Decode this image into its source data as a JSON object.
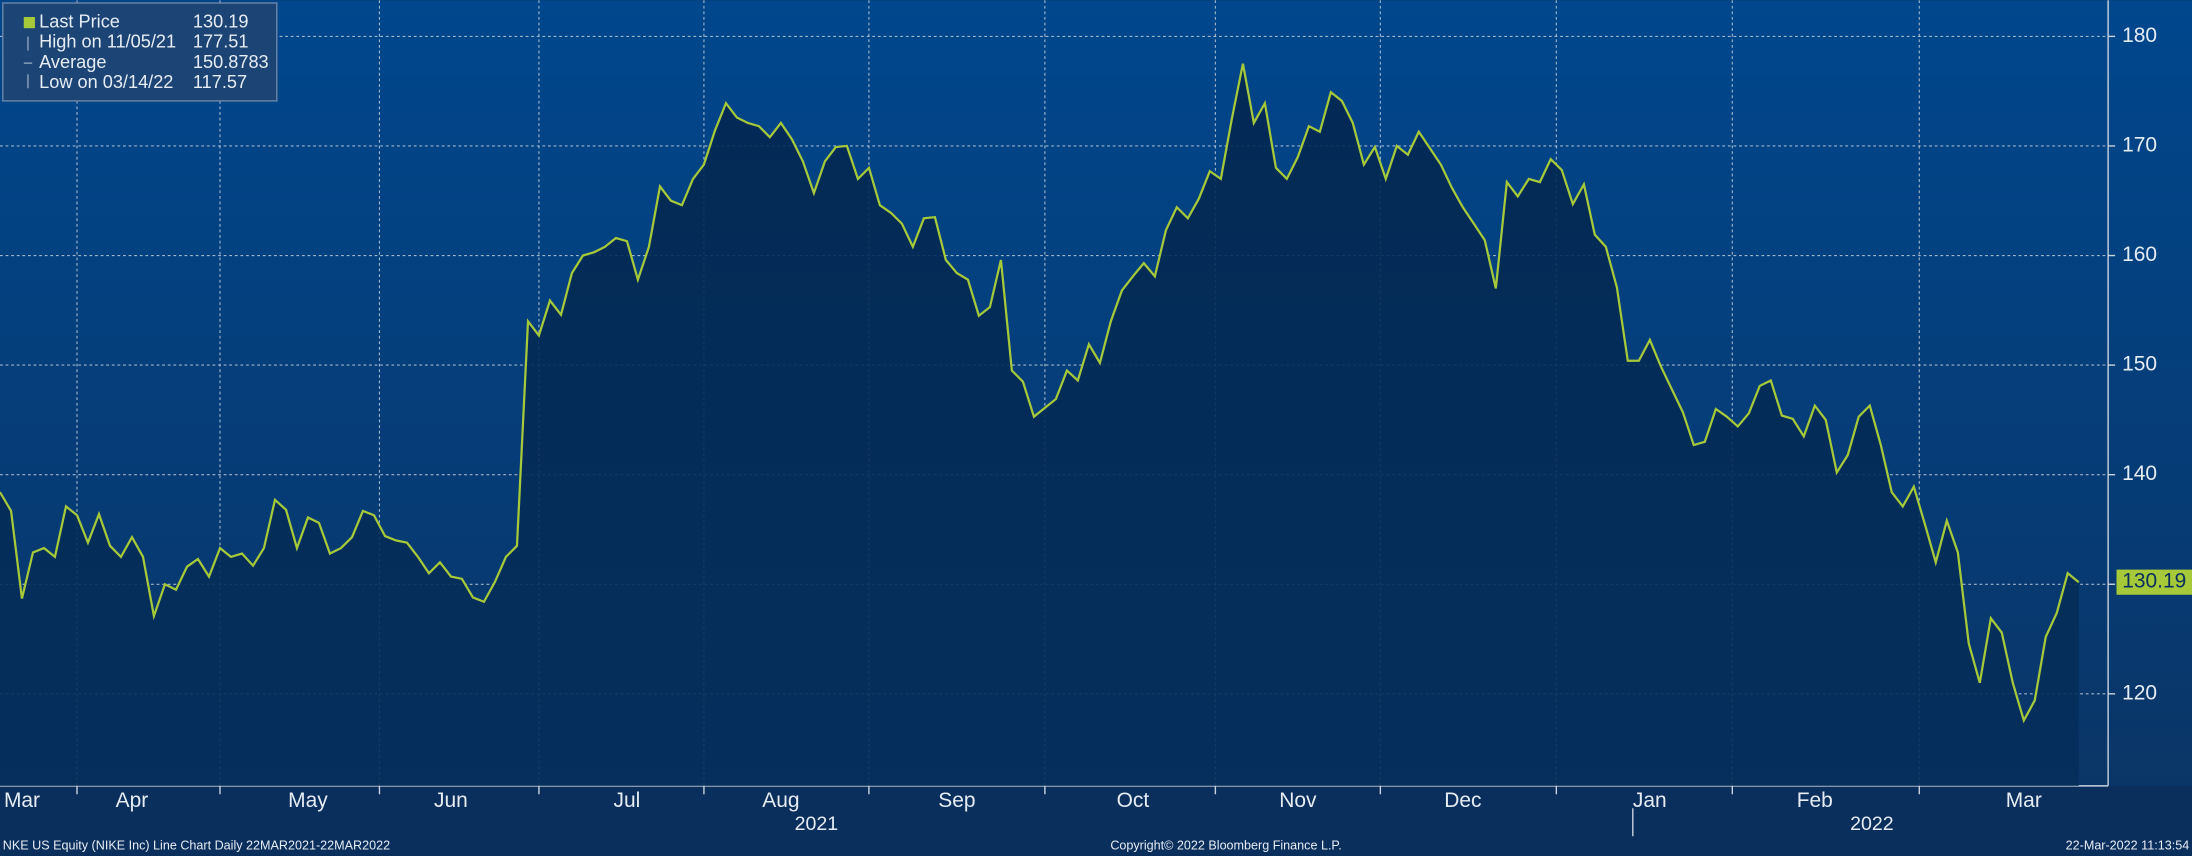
{
  "chart_data": {
    "type": "line",
    "categories": [
      null,
      null,
      "Mar",
      null,
      null,
      null,
      null,
      null,
      null,
      null,
      null,
      null,
      "Apr",
      null,
      null,
      null,
      null,
      null,
      null,
      null,
      null,
      null,
      null,
      null,
      null,
      null,
      null,
      null,
      "May",
      null,
      null,
      null,
      null,
      null,
      null,
      null,
      null,
      null,
      null,
      null,
      null,
      "Jun",
      null,
      null,
      null,
      null,
      null,
      null,
      null,
      null,
      null,
      null,
      null,
      null,
      null,
      null,
      null,
      "Jul",
      null,
      null,
      null,
      null,
      null,
      null,
      null,
      null,
      null,
      null,
      null,
      null,
      null,
      "Aug",
      null,
      null,
      null,
      null,
      null,
      null,
      null,
      null,
      null,
      null,
      null,
      null,
      null,
      null,
      null,
      "Sep",
      null,
      null,
      null,
      null,
      null,
      null,
      null,
      null,
      null,
      null,
      null,
      null,
      null,
      null,
      null,
      "Oct",
      null,
      null,
      null,
      null,
      null,
      null,
      null,
      null,
      null,
      null,
      null,
      null,
      null,
      null,
      "Nov",
      null,
      null,
      null,
      null,
      null,
      null,
      null,
      null,
      null,
      null,
      null,
      null,
      null,
      null,
      "Dec",
      null,
      null,
      null,
      null,
      null,
      null,
      null,
      null,
      null,
      null,
      null,
      null,
      null,
      null,
      null,
      null,
      "Jan",
      null,
      null,
      null,
      null,
      null,
      null,
      null,
      null,
      null,
      null,
      null,
      null,
      null,
      null,
      "Feb",
      null,
      null,
      null,
      null,
      null,
      null,
      null,
      null,
      null,
      null,
      null,
      null,
      null,
      null,
      null,
      null,
      null,
      null,
      "Mar",
      null,
      null,
      null,
      null,
      null
    ],
    "years": [
      "2021",
      "2022"
    ],
    "series": [
      {
        "name": "Last Price",
        "color": "#a6c93a",
        "values": [
          138.4,
          136.7,
          128.7,
          132.9,
          133.3,
          132.5,
          137.1,
          136.3,
          133.8,
          136.4,
          133.5,
          132.5,
          134.3,
          132.5,
          127.1,
          130.0,
          129.5,
          131.6,
          132.3,
          130.7,
          133.3,
          132.5,
          132.8,
          131.7,
          133.3,
          137.7,
          136.8,
          133.3,
          136.1,
          135.6,
          132.8,
          133.3,
          134.3,
          136.7,
          136.3,
          134.4,
          134.0,
          133.8,
          132.5,
          131.0,
          132.0,
          130.7,
          130.5,
          128.8,
          128.4,
          130.2,
          132.5,
          133.5,
          154.0,
          152.7,
          155.9,
          154.6,
          158.4,
          160.0,
          160.3,
          160.8,
          161.6,
          161.3,
          157.8,
          160.8,
          166.3,
          165.0,
          164.6,
          167.0,
          168.3,
          171.4,
          173.9,
          172.6,
          172.1,
          171.8,
          170.8,
          172.1,
          170.6,
          168.6,
          165.7,
          168.6,
          169.9,
          170.0,
          167.0,
          168.0,
          164.6,
          163.9,
          162.9,
          160.8,
          163.4,
          163.5,
          159.6,
          158.4,
          157.8,
          154.5,
          155.3,
          159.6,
          149.5,
          148.5,
          145.3,
          146.1,
          146.9,
          149.5,
          148.6,
          151.9,
          150.2,
          154.0,
          156.8,
          158.1,
          159.3,
          158.1,
          162.3,
          164.4,
          163.4,
          165.2,
          167.7,
          167.0,
          172.5,
          177.51,
          172.1,
          173.9,
          168.0,
          167.0,
          169.0,
          171.8,
          171.3,
          174.9,
          174.1,
          172.1,
          168.3,
          169.9,
          167.0,
          170.0,
          169.2,
          171.3,
          169.8,
          168.3,
          166.2,
          164.4,
          162.9,
          161.4,
          157.0,
          166.7,
          165.4,
          167.0,
          166.7,
          168.8,
          167.8,
          164.7,
          166.5,
          161.9,
          160.8,
          157.1,
          150.4,
          150.4,
          152.3,
          149.9,
          147.8,
          145.7,
          142.7,
          143.0,
          146.0,
          145.3,
          144.4,
          145.6,
          148.1,
          148.6,
          145.4,
          145.1,
          143.5,
          146.3,
          145.0,
          140.2,
          141.8,
          145.3,
          146.3,
          142.7,
          138.4,
          137.1,
          138.9,
          135.5,
          132.0,
          135.8,
          132.9,
          124.6,
          121.0,
          126.9,
          125.6,
          121.0,
          117.57,
          119.4,
          125.2,
          127.4,
          131.0,
          130.19
        ]
      }
    ],
    "legend": [
      {
        "label": "Last Price",
        "value": 130.19
      },
      {
        "label": "High on 11/05/21",
        "value": 177.51
      },
      {
        "label": "Average",
        "value": 150.8783
      },
      {
        "label": "Low on 03/14/22",
        "value": 117.57
      }
    ],
    "ylim": [
      111.6,
      183.3
    ],
    "yticks": [
      120,
      130,
      140,
      150,
      160,
      170,
      180
    ],
    "grid": true,
    "footer": {
      "left": "NKE US Equity (NIKE Inc) Line Chart  Daily 22MAR2021-22MAR2022",
      "center": "Copyright© 2022 Bloomberg Finance L.P.",
      "right": "22-Mar-2022 11:13:54"
    }
  }
}
